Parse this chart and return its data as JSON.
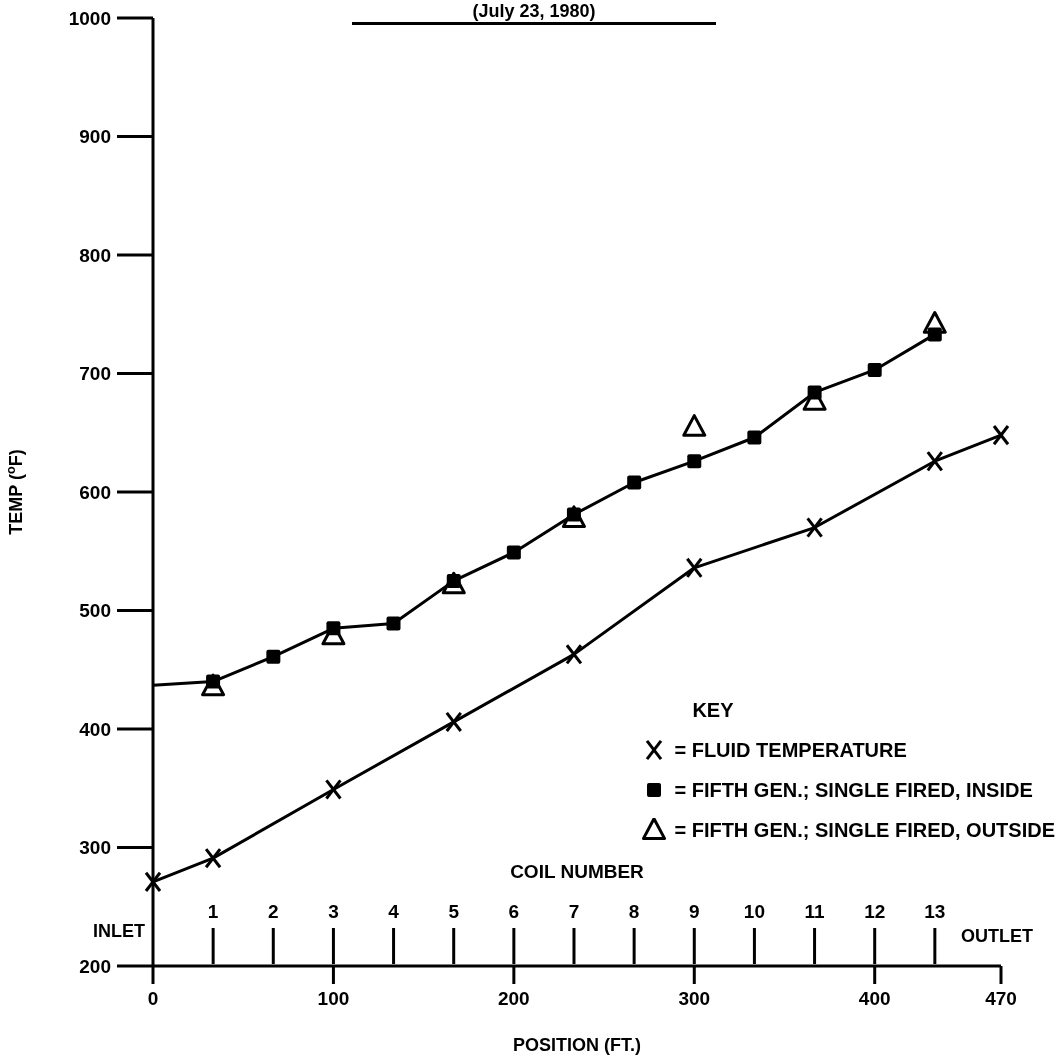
{
  "chart_data": {
    "type": "line",
    "title": "(July 23, 1980)",
    "xlabel": "POSITION (FT.)",
    "ylabel": "TEMP ($^{o}$F)",
    "x2label": "COIL NUMBER",
    "legend_title": "KEY",
    "xlim": [
      0,
      470
    ],
    "xticks": [
      0,
      100,
      200,
      300,
      400,
      470
    ],
    "ylim": [
      200,
      1000
    ],
    "yticks": [
      200,
      300,
      400,
      500,
      600,
      700,
      800,
      900,
      1000
    ],
    "x2lim": [
      0,
      14.1
    ],
    "x2ticks": [
      1,
      2,
      3,
      4,
      5,
      6,
      7,
      8,
      9,
      10,
      11,
      12,
      13
    ],
    "annotations": [
      "INLET",
      "OUTLET"
    ],
    "legend": "bottom right",
    "series": [
      {
        "name": "= FLUID TEMPERATURE",
        "marker": "cross",
        "color": "#000000",
        "x": [
          0,
          33.3,
          100,
          166.7,
          233.3,
          300,
          366.7,
          433.3,
          470
        ],
        "values": [
          271,
          291,
          349,
          406,
          463,
          536,
          570,
          626,
          648
        ]
      },
      {
        "type": "line",
        "color": "#000000",
        "x": [
          0,
          33.3
        ],
        "values": [
          437,
          440
        ]
      },
      {
        "name": "= FIFTH GEN.; SINGLE FIRED, INSIDE",
        "marker": "square",
        "color": "#000000",
        "x": [
          33.3,
          66.7,
          100,
          133.3,
          166.7,
          200,
          233.3,
          266.7,
          300,
          333.3,
          366.7,
          400,
          433.3
        ],
        "values": [
          440,
          461,
          485,
          489,
          525,
          549,
          581,
          608,
          626,
          646,
          684,
          703,
          733
        ]
      },
      {
        "name": "= FIFTH GEN.; SINGLE FIRED, OUTSIDE",
        "type": "scatter",
        "marker": "triangle",
        "color": "#000000",
        "x": [
          33.3,
          100,
          166.7,
          233.3,
          300,
          366.7,
          433.3
        ],
        "values": [
          436,
          479,
          522,
          578,
          655,
          677,
          742
        ]
      }
    ]
  }
}
